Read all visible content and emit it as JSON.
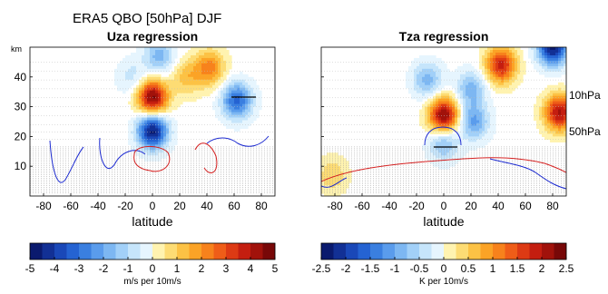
{
  "figure": {
    "suptitle": "ERA5  QBO [50hPa] DJF",
    "km_label": "km"
  },
  "chart_data": [
    {
      "type": "heatmap",
      "title": "Uza regression",
      "xlabel": "latitude",
      "ylabel": "",
      "x_ticks": [
        "-80",
        "-60",
        "-40",
        "-20",
        "0",
        "20",
        "40",
        "60",
        "80"
      ],
      "y_ticks": [
        "10",
        "20",
        "30",
        "40"
      ],
      "xlim": [
        -90,
        90
      ],
      "ylim": [
        0,
        50
      ],
      "colorbar": {
        "ticks": [
          "-5",
          "-4",
          "-3",
          "-2",
          "-1",
          "0",
          "1",
          "2",
          "3",
          "4",
          "5"
        ],
        "range": [
          -5,
          5
        ],
        "levels": 20,
        "label": "m/s per 10m/s"
      },
      "features": [
        {
          "lat": 0,
          "z": 33,
          "value": 5
        },
        {
          "lat": 0,
          "z": 22,
          "value": -5
        },
        {
          "lat": 5,
          "z": 47,
          "value": -2
        },
        {
          "lat": 25,
          "z": 40,
          "value": 1.5
        },
        {
          "lat": 42,
          "z": 43,
          "value": 2.5
        },
        {
          "lat": 62,
          "z": 32,
          "value": -3.5
        },
        {
          "lat": -15,
          "z": 40,
          "value": -1
        }
      ]
    },
    {
      "type": "heatmap",
      "title": "Tza regression",
      "xlabel": "latitude",
      "ylabel": "",
      "x_ticks": [
        "-80",
        "-60",
        "-40",
        "-20",
        "0",
        "20",
        "40",
        "60",
        "80"
      ],
      "pressure_labels": [
        "10hPa",
        "50hPa"
      ],
      "xlim": [
        -90,
        90
      ],
      "ylim": [
        0,
        50
      ],
      "colorbar": {
        "ticks": [
          "-2.5",
          "-2",
          "-1.5",
          "-1",
          "-0.5",
          "0",
          "0.5",
          "1",
          "1.5",
          "2",
          "2.5"
        ],
        "range": [
          -2.5,
          2.5
        ],
        "levels": 20,
        "label": "K per 10m/s"
      },
      "features": [
        {
          "lat": 0,
          "z": 27,
          "value": 2.5
        },
        {
          "lat": -12,
          "z": 39,
          "value": -1
        },
        {
          "lat": 20,
          "z": 36,
          "value": -1
        },
        {
          "lat": 22,
          "z": 25,
          "value": -1.2
        },
        {
          "lat": 0,
          "z": 18,
          "value": -1
        },
        {
          "lat": 42,
          "z": 44,
          "value": 2
        },
        {
          "lat": 80,
          "z": 50,
          "value": -2.5
        },
        {
          "lat": 85,
          "z": 28,
          "value": 2.2
        },
        {
          "lat": -82,
          "z": 7,
          "value": 0.6
        }
      ]
    }
  ]
}
